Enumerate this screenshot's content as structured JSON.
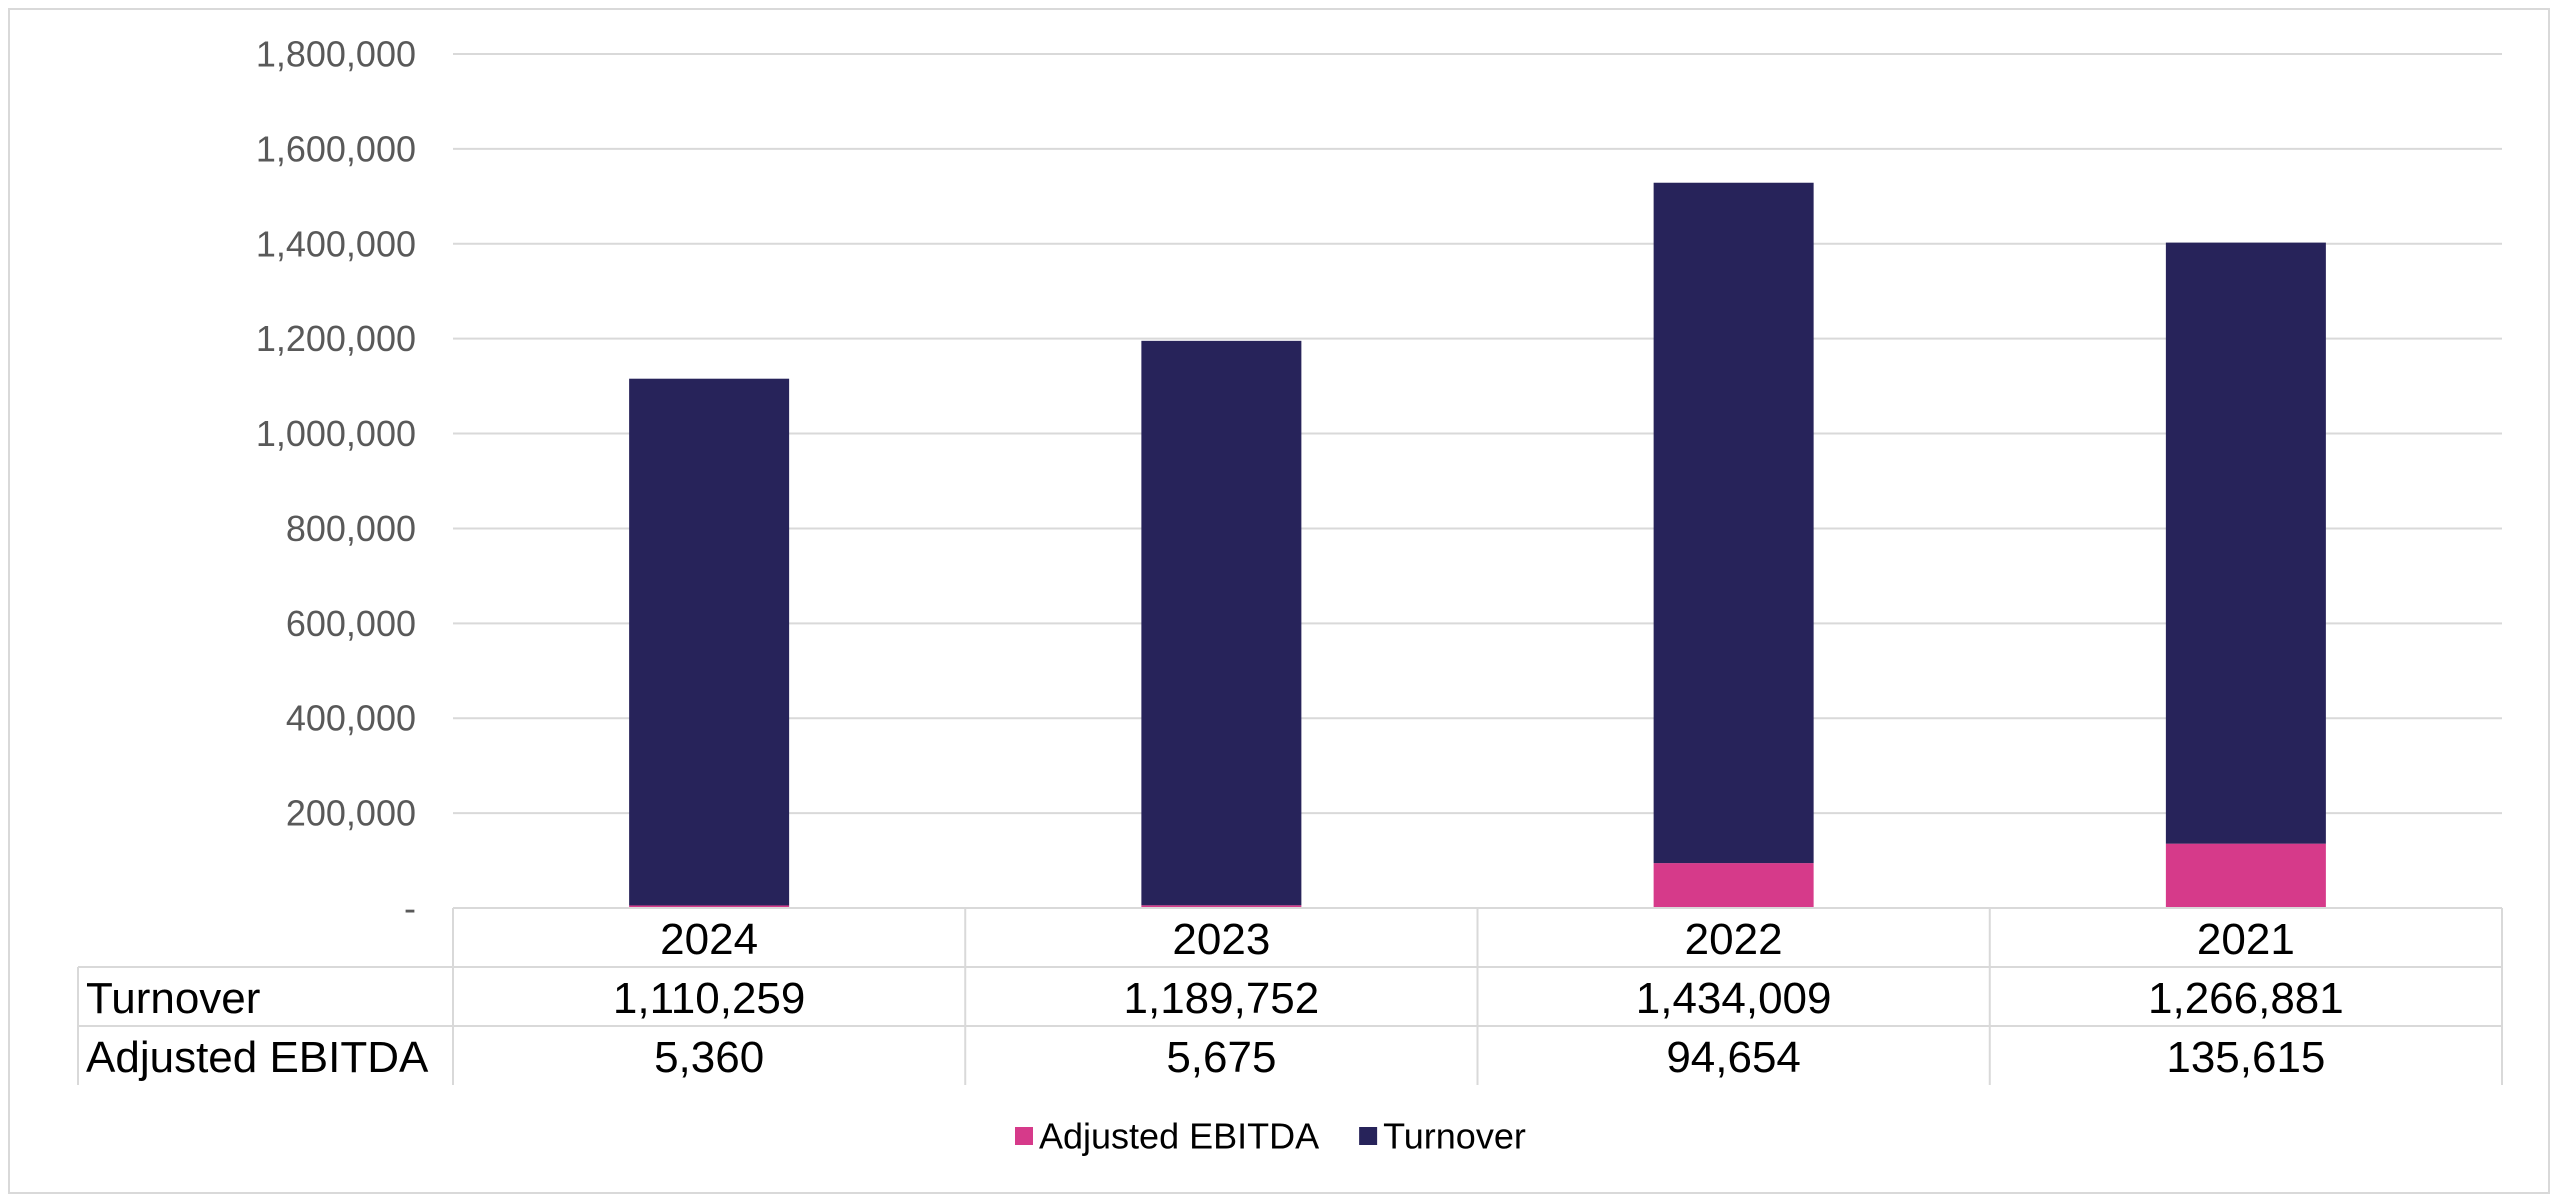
{
  "chart_data": {
    "type": "bar",
    "stacked": true,
    "categories": [
      "2024",
      "2023",
      "2022",
      "2021"
    ],
    "series": [
      {
        "name": "Adjusted EBITDA",
        "color": "#D63A8A",
        "values": [
          5360,
          5675,
          94654,
          135615
        ],
        "labels": [
          "5,360",
          "5,675",
          "94,654",
          "135,615"
        ]
      },
      {
        "name": "Turnover",
        "color": "#27235A",
        "values": [
          1110259,
          1189752,
          1434009,
          1266881
        ],
        "labels": [
          "1,110,259",
          "1,189,752",
          "1,434,009",
          "1,266,881"
        ]
      }
    ],
    "ylim": [
      0,
      1800000
    ],
    "yticks": [
      {
        "value": 0,
        "label": "-"
      },
      {
        "value": 200000,
        "label": "200,000"
      },
      {
        "value": 400000,
        "label": "400,000"
      },
      {
        "value": 600000,
        "label": "600,000"
      },
      {
        "value": 800000,
        "label": "800,000"
      },
      {
        "value": 1000000,
        "label": "1,000,000"
      },
      {
        "value": 1200000,
        "label": "1,200,000"
      },
      {
        "value": 1400000,
        "label": "1,400,000"
      },
      {
        "value": 1600000,
        "label": "1,600,000"
      },
      {
        "value": 1800000,
        "label": "1,800,000"
      }
    ],
    "grid": true,
    "legend_position": "bottom",
    "legend": [
      "Adjusted EBITDA",
      "Turnover"
    ],
    "data_table": {
      "rows": [
        {
          "label": "Turnover",
          "series": "Turnover"
        },
        {
          "label": "Adjusted EBITDA",
          "series": "Adjusted EBITDA"
        }
      ]
    }
  }
}
